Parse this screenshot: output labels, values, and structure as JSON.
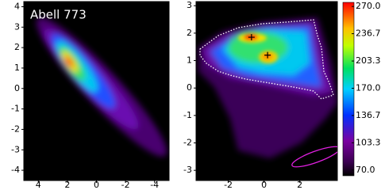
{
  "chart_data": [
    {
      "type": "heatmap",
      "title": "Abell 773",
      "xlim": [
        5,
        -5
      ],
      "ylim": [
        -4.5,
        4.25
      ],
      "xticks": [
        4,
        2,
        0,
        -2,
        -4
      ],
      "yticks": [
        -4,
        -3,
        -2,
        -1,
        0,
        1,
        2,
        3,
        4
      ]
    },
    {
      "type": "heatmap",
      "xlim": [
        -3.8,
        4.1
      ],
      "ylim": [
        -3.37,
        3.15
      ],
      "xticks": [
        -2,
        0,
        2
      ],
      "yticks": [
        -3,
        -2,
        -1,
        0,
        1,
        2,
        3
      ],
      "peaks": {
        "x": [
          -0.7,
          0.2
        ],
        "y": [
          1.85,
          1.2
        ]
      }
    },
    {
      "type": "colorbar",
      "ylim": [
        63,
        275
      ],
      "yticks": [
        {
          "value": 70,
          "label": "70.0"
        },
        103.3,
        136.7,
        {
          "value": 170,
          "label": "170.0"
        },
        203.3,
        236.7,
        {
          "value": 270,
          "label": "270.0"
        }
      ]
    }
  ]
}
